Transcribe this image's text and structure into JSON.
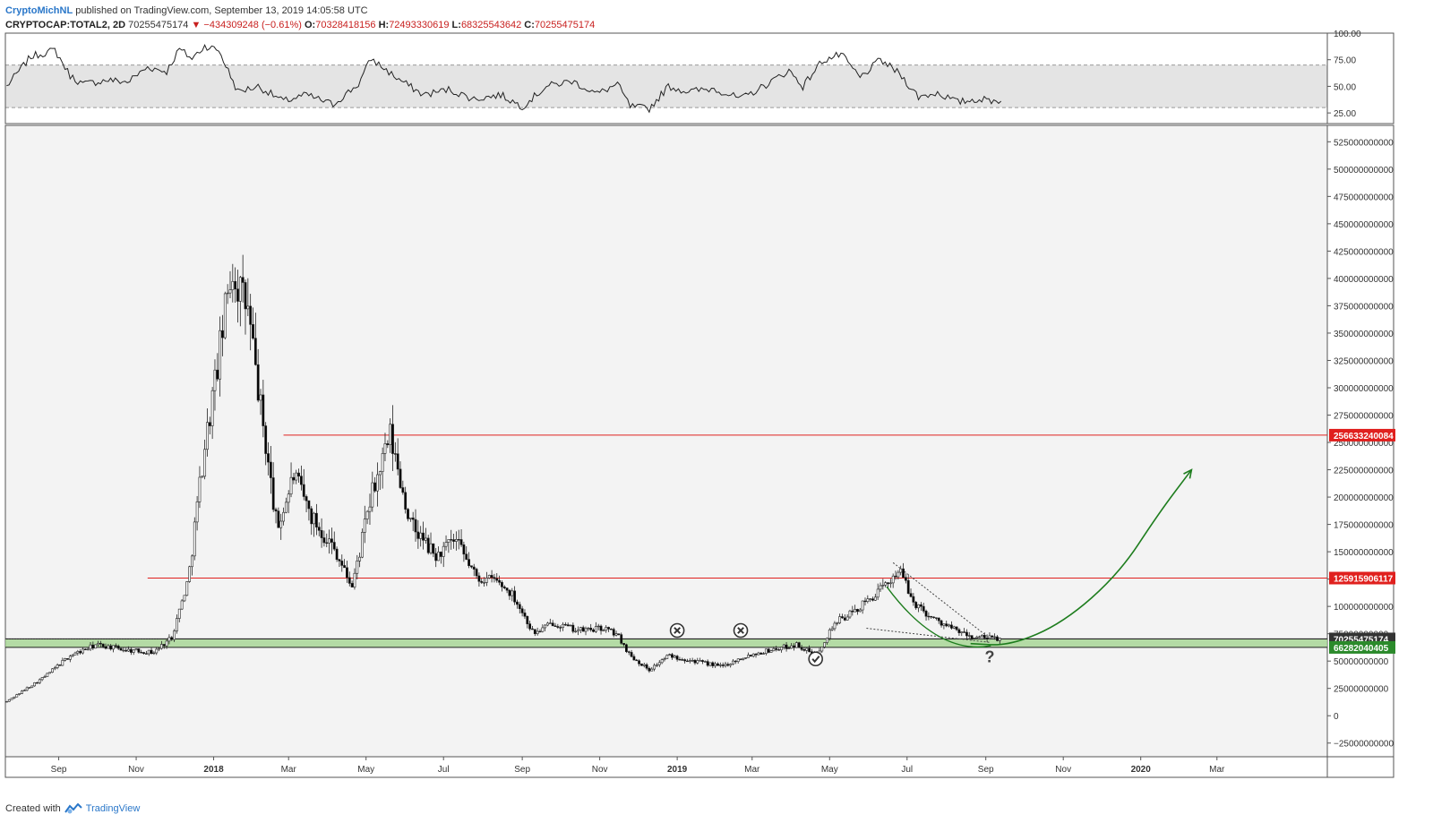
{
  "header": {
    "author": "CryptoMichNL",
    "published": "published on TradingView.com, September 13, 2019 14:05:58 UTC",
    "symbol": "CRYPTOCAP:TOTAL2, 2D",
    "last": "70255475174",
    "change": "▼ −434309248 (−0.61%)",
    "o_label": "O:",
    "o_value": "70328418156",
    "h_label": "H:",
    "h_value": "72493330619",
    "l_label": "L:",
    "l_value": "68325543642",
    "c_label": "C:",
    "c_value": "70255475174"
  },
  "footer": {
    "created_with": "Created with",
    "brand": "TradingView",
    "logo_icon": "tradingview-logo-icon"
  },
  "colors": {
    "candle_up": "#ffffff",
    "candle_down": "#000000",
    "resistance": "#e0201e",
    "support_zone": "#9fd38b",
    "projection": "#1e7d1e",
    "price_tag": "#333333",
    "zone_tag": "#2b8a2b"
  },
  "chart_data": [
    {
      "type": "line",
      "name": "rsi",
      "yticks": [
        "100.00",
        "75.00",
        "50.00",
        "25.00"
      ],
      "ylim": [
        15,
        100
      ],
      "band": [
        30,
        70
      ],
      "x": [
        "2017-07-22",
        "2017-08-10",
        "2017-08-29",
        "2017-09-10",
        "2017-09-20",
        "2017-10-10",
        "2017-10-25",
        "2017-11-10",
        "2017-11-25",
        "2017-12-05",
        "2017-12-15",
        "2017-12-25",
        "2018-01-05",
        "2018-01-20",
        "2018-02-05",
        "2018-02-25",
        "2018-03-15",
        "2018-04-05",
        "2018-04-25",
        "2018-05-05",
        "2018-05-25",
        "2018-06-15",
        "2018-07-05",
        "2018-07-25",
        "2018-08-15",
        "2018-09-01",
        "2018-09-20",
        "2018-10-10",
        "2018-10-30",
        "2018-11-15",
        "2018-11-25",
        "2018-12-10",
        "2018-12-25",
        "2019-01-10",
        "2019-01-30",
        "2019-02-20",
        "2019-03-10",
        "2019-03-30",
        "2019-04-10",
        "2019-04-25",
        "2019-05-10",
        "2019-05-25",
        "2019-06-10",
        "2019-06-25",
        "2019-07-10",
        "2019-07-25",
        "2019-08-10",
        "2019-08-25",
        "2019-09-13"
      ],
      "values": [
        50,
        78,
        84,
        60,
        52,
        56,
        54,
        68,
        64,
        85,
        76,
        88,
        84,
        45,
        50,
        36,
        42,
        33,
        52,
        76,
        58,
        42,
        47,
        38,
        42,
        31,
        50,
        55,
        43,
        52,
        31,
        29,
        50,
        45,
        48,
        38,
        50,
        65,
        50,
        74,
        80,
        58,
        75,
        62,
        40,
        44,
        35,
        38,
        36
      ]
    },
    {
      "type": "candlestick",
      "name": "price",
      "ylim": [
        -37500000000,
        540000000000
      ],
      "yticks": [
        "525000000000",
        "500000000000",
        "475000000000",
        "450000000000",
        "425000000000",
        "400000000000",
        "375000000000",
        "350000000000",
        "325000000000",
        "300000000000",
        "275000000000",
        "250000000000",
        "225000000000",
        "200000000000",
        "175000000000",
        "150000000000",
        "125000000000",
        "100000000000",
        "75000000000",
        "50000000000",
        "25000000000",
        "0",
        "−25000000000"
      ],
      "xticks": [
        "Sep",
        "Nov",
        "2018",
        "Mar",
        "May",
        "Jul",
        "Sep",
        "Nov",
        "2019",
        "Mar",
        "May",
        "Jul",
        "Sep",
        "Nov",
        "2020",
        "Mar"
      ],
      "anchor_dates": [
        "2017-07-22",
        "2017-08-20",
        "2017-09-10",
        "2017-10-01",
        "2017-10-25",
        "2017-11-15",
        "2017-11-29",
        "2017-12-12",
        "2017-12-24",
        "2018-01-04",
        "2018-01-15",
        "2018-01-28",
        "2018-02-06",
        "2018-02-20",
        "2018-03-05",
        "2018-03-20",
        "2018-04-05",
        "2018-04-20",
        "2018-05-05",
        "2018-05-20",
        "2018-06-05",
        "2018-06-25",
        "2018-07-10",
        "2018-07-28",
        "2018-08-10",
        "2018-08-25",
        "2018-09-10",
        "2018-09-25",
        "2018-10-15",
        "2018-11-05",
        "2018-11-15",
        "2018-11-25",
        "2018-12-10",
        "2018-12-25",
        "2019-01-15",
        "2019-02-05",
        "2019-02-25",
        "2019-03-15",
        "2019-04-05",
        "2019-04-20",
        "2019-05-05",
        "2019-05-20",
        "2019-06-05",
        "2019-06-15",
        "2019-06-25",
        "2019-07-05",
        "2019-07-20",
        "2019-08-05",
        "2019-08-20",
        "2019-09-13"
      ],
      "anchor_close": [
        13,
        35,
        55,
        65,
        60,
        58,
        72,
        125,
        240,
        320,
        410,
        370,
        290,
        170,
        220,
        180,
        155,
        118,
        200,
        255,
        175,
        145,
        160,
        125,
        125,
        110,
        75,
        85,
        78,
        80,
        74,
        55,
        42,
        55,
        50,
        45,
        55,
        60,
        65,
        55,
        85,
        95,
        110,
        120,
        135,
        105,
        90,
        80,
        72,
        70.25
      ],
      "unit": 1000000000,
      "levels": [
        {
          "label": "256633240084",
          "value": 256633240084,
          "from": "2018-02-25"
        },
        {
          "label": "125915906117",
          "value": 125915906117,
          "from": "2017-11-10"
        }
      ],
      "price_tag": {
        "label": "70255475174",
        "value": 70255475174
      },
      "zone": {
        "label": "66282040405",
        "low": 62500000000,
        "high": 70255475174
      },
      "annotations": [
        {
          "type": "cross",
          "date": "2019-01-01",
          "value": 78000000000,
          "icon": "cross-circle-icon"
        },
        {
          "type": "cross",
          "date": "2019-02-20",
          "value": 78000000000,
          "icon": "cross-circle-icon"
        },
        {
          "type": "check",
          "date": "2019-04-20",
          "value": 52000000000,
          "icon": "check-circle-icon"
        },
        {
          "type": "question",
          "date": "2019-09-04",
          "value": 54000000000,
          "label": "?"
        }
      ],
      "projection": {
        "dates": [
          "2019-08-20",
          "2019-09-20",
          "2019-11-01",
          "2019-12-15",
          "2020-01-15",
          "2020-02-10"
        ],
        "values": [
          66000000000,
          64000000000,
          85000000000,
          130000000000,
          185000000000,
          225000000000
        ]
      }
    }
  ]
}
